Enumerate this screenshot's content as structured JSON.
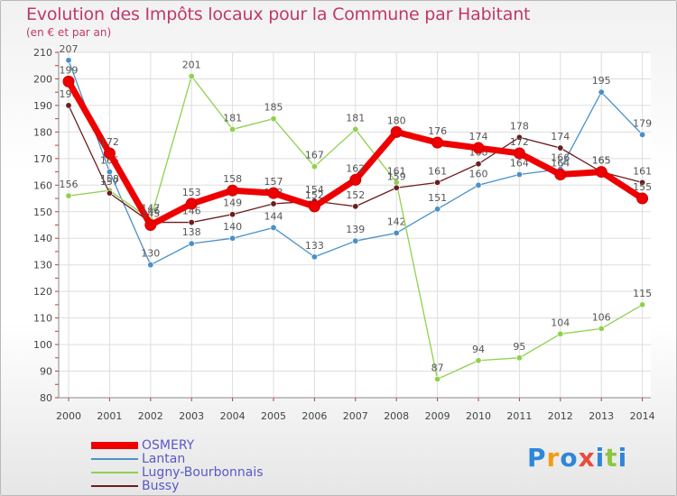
{
  "header": {
    "title": "Evolution des Impôts locaux pour la Commune par Habitant",
    "subtitle": "(en € et par an)"
  },
  "colors": {
    "title": "#c0386b",
    "grid": "#dddddd",
    "axis": "#888888",
    "label": "#444444",
    "legend_text": "#5a58c8"
  },
  "logo": {
    "letters": [
      "P",
      "r",
      "o",
      "x",
      "i",
      "t",
      "i"
    ],
    "colors": [
      "#2e86d9",
      "#f39c12",
      "#2e86d9",
      "#e74c3c",
      "#2e86d9",
      "#8dc63f",
      "#2e86d9"
    ]
  },
  "chart_data": {
    "type": "line",
    "x": [
      "2000",
      "2001",
      "2002",
      "2003",
      "2004",
      "2005",
      "2006",
      "2007",
      "2008",
      "2009",
      "2010",
      "2011",
      "2012",
      "2013",
      "2014"
    ],
    "ylim": [
      80,
      210
    ],
    "yticks": [
      80,
      90,
      100,
      110,
      120,
      130,
      140,
      150,
      160,
      170,
      180,
      190,
      200,
      210
    ],
    "grid": true,
    "legend": "bottom-left",
    "series": [
      {
        "name": "Lantan",
        "color": "#4a90c8",
        "values": [
          207,
          165,
          130,
          138,
          140,
          144,
          133,
          139,
          142,
          151,
          160,
          164,
          166,
          195,
          179
        ]
      },
      {
        "name": "Lugny-Bourbonnais",
        "color": "#8fd14f",
        "values": [
          156,
          158,
          147,
          201,
          181,
          185,
          167,
          181,
          161,
          87,
          94,
          95,
          104,
          106,
          115
        ]
      },
      {
        "name": "Bussy",
        "color": "#6b1e1e",
        "values": [
          190,
          157,
          146,
          146,
          149,
          153,
          154,
          152,
          159,
          161,
          168,
          178,
          174,
          165,
          161
        ]
      },
      {
        "name": "OSMERY",
        "color": "#ee0000",
        "values": [
          199,
          172,
          145,
          153,
          158,
          157,
          152,
          162,
          180,
          176,
          174,
          172,
          164,
          165,
          155
        ]
      }
    ]
  }
}
